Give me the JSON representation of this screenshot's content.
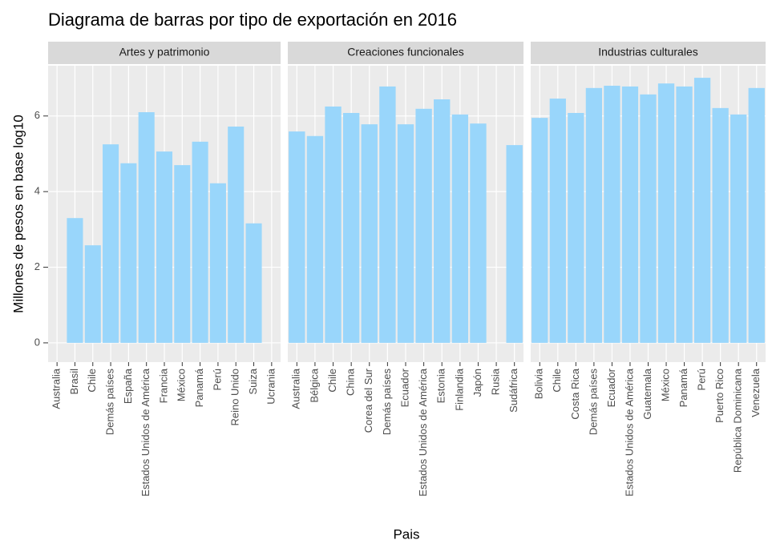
{
  "title": "Diagrama de barras por tipo de exportación en 2016",
  "x_label": "Pais",
  "y_label": "Millones de pesos en base log10",
  "ylim": [
    -0.51,
    7.33
  ],
  "yticks": [
    0,
    2,
    4,
    6
  ],
  "color": "#99d6fb",
  "grid": true,
  "chart_data": [
    {
      "type": "bar",
      "title": "Artes y patrimonio",
      "categories": [
        "Australia",
        "Brasil",
        "Chile",
        "Demás países",
        "España",
        "Estados Unidos de América",
        "Francia",
        "México",
        "Panamá",
        "Perú",
        "Reino Unido",
        "Suiza",
        "Ucrania"
      ],
      "values": [
        null,
        3.3,
        2.58,
        5.25,
        4.75,
        6.1,
        5.06,
        4.7,
        5.32,
        4.22,
        5.72,
        3.16,
        null
      ]
    },
    {
      "type": "bar",
      "title": "Creaciones funcionales",
      "categories": [
        "Australia",
        "Bélgica",
        "Chile",
        "China",
        "Corea del Sur",
        "Demás países",
        "Ecuador",
        "Estados Unidos de América",
        "Estonia",
        "Finlandia",
        "Japón",
        "Rusia",
        "Sudáfrica"
      ],
      "values": [
        5.59,
        5.47,
        6.25,
        6.08,
        5.78,
        6.78,
        5.78,
        6.19,
        6.44,
        6.04,
        5.8,
        null,
        5.23
      ]
    },
    {
      "type": "bar",
      "title": "Industrias culturales",
      "categories": [
        "Bolivia",
        "Chile",
        "Costa Rica",
        "Demás países",
        "Ecuador",
        "Estados Unidos de América",
        "Guatemala",
        "México",
        "Panamá",
        "Perú",
        "Puerto Rico",
        "República Dominicana",
        "Venezuela"
      ],
      "values": [
        5.95,
        6.46,
        6.08,
        6.74,
        6.8,
        6.78,
        6.57,
        6.86,
        6.78,
        7.01,
        6.21,
        6.04,
        6.74
      ]
    }
  ]
}
